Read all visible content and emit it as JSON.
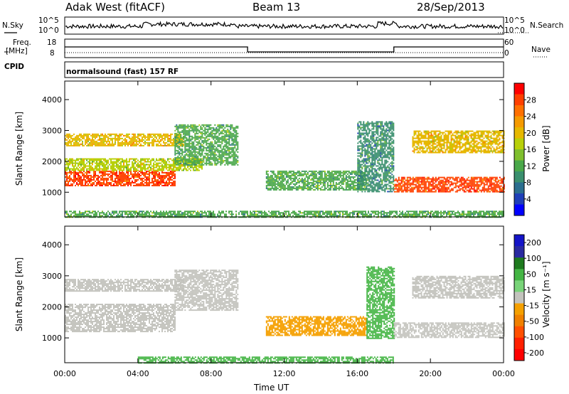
{
  "header": {
    "radar": "Adak West (fitACF)",
    "beam": "Beam 13",
    "date": "28/Sep/2013"
  },
  "status_panel": {
    "nsky_label": "N.Sky",
    "nsky_ticks": [
      "10^5",
      "10^0"
    ],
    "nsearch_label": "N.Search",
    "nsearch_ticks": [
      "10^5",
      "10^0"
    ],
    "freq_label_1": "Freq.",
    "freq_label_2": "[MHz]",
    "freq_ticks": [
      "18",
      "8"
    ],
    "nave_label": "Nave",
    "nave_ticks": [
      "60",
      "0"
    ],
    "cpid_label": "CPID",
    "cpid_value": "normalsound (fast) 157 RF"
  },
  "colors": {
    "power": [
      "#0000ff",
      "#1f3fb8",
      "#2b6e8f",
      "#3a8f6e",
      "#4aa84a",
      "#7fbf2e",
      "#b8d00a",
      "#e6b800",
      "#f59a00",
      "#ff7000",
      "#ff4000",
      "#ff0000"
    ],
    "velocity": [
      "#1414c8",
      "#2a2aa0",
      "#1e7a1e",
      "#44b544",
      "#79d479",
      "#c3c3bd",
      "#f5a000",
      "#f08000",
      "#ff5000",
      "#ff2000",
      "#ff0000"
    ],
    "ground_scatter": "#c3c3bd"
  },
  "chart_data": [
    {
      "type": "heatmap",
      "name": "power",
      "xlabel": "Time UT",
      "ylabel": "Slant Range [km]",
      "x_ticks": [
        "00:00",
        "04:00",
        "08:00",
        "12:00",
        "16:00",
        "20:00",
        "00:00"
      ],
      "y_ticks": [
        "1000",
        "2000",
        "3000",
        "4000"
      ],
      "ylim": [
        200,
        4600
      ],
      "colorbar_label": "Power [dB]",
      "colorbar_ticks": [
        "4",
        "8",
        "12",
        "16",
        "20",
        "24",
        "28"
      ],
      "bands": [
        {
          "t0": 0.0,
          "t1": 6.0,
          "r0": 1200,
          "r1": 1700,
          "level": 28
        },
        {
          "t0": 0.0,
          "t1": 7.5,
          "r0": 1700,
          "r1": 2100,
          "level": 16
        },
        {
          "t0": 0.0,
          "t1": 6.5,
          "r0": 2500,
          "r1": 2900,
          "level": 20
        },
        {
          "t0": 6.0,
          "t1": 9.5,
          "r0": 1900,
          "r1": 3200,
          "level": 12
        },
        {
          "t0": 11.0,
          "t1": 16.5,
          "r0": 1100,
          "r1": 1700,
          "level": 12
        },
        {
          "t0": 16.0,
          "t1": 18.0,
          "r0": 1000,
          "r1": 3300,
          "level": 8
        },
        {
          "t0": 18.0,
          "t1": 24.0,
          "r0": 1000,
          "r1": 1500,
          "level": 28
        },
        {
          "t0": 19.0,
          "t1": 24.0,
          "r0": 2300,
          "r1": 3000,
          "level": 20
        },
        {
          "t0": 0.0,
          "t1": 24.0,
          "r0": 200,
          "r1": 400,
          "level": 12
        }
      ]
    },
    {
      "type": "heatmap",
      "name": "velocity",
      "xlabel": "Time UT",
      "ylabel": "Slant Range [km]",
      "x_ticks": [
        "00:00",
        "04:00",
        "08:00",
        "12:00",
        "16:00",
        "20:00",
        "00:00"
      ],
      "y_ticks": [
        "1000",
        "2000",
        "3000",
        "4000"
      ],
      "ylim": [
        200,
        4600
      ],
      "colorbar_label": "Velocity [m s⁻¹]",
      "colorbar_ticks": [
        "200",
        "100",
        "50",
        "15",
        "-15",
        "-50",
        "-100",
        "-200"
      ],
      "bands": [
        {
          "t0": 0.0,
          "t1": 6.5,
          "r0": 2500,
          "r1": 2900,
          "level": 0
        },
        {
          "t0": 0.0,
          "t1": 6.0,
          "r0": 1200,
          "r1": 2100,
          "level": 0
        },
        {
          "t0": 6.0,
          "t1": 9.5,
          "r0": 1900,
          "r1": 3200,
          "level": 0
        },
        {
          "t0": 11.0,
          "t1": 16.5,
          "r0": 1100,
          "r1": 1700,
          "level": -50
        },
        {
          "t0": 16.5,
          "t1": 18.0,
          "r0": 1000,
          "r1": 3300,
          "level": 50
        },
        {
          "t0": 18.0,
          "t1": 24.0,
          "r0": 1000,
          "r1": 1500,
          "level": 0
        },
        {
          "t0": 19.0,
          "t1": 24.0,
          "r0": 2300,
          "r1": 3000,
          "level": 0
        },
        {
          "t0": 4.0,
          "t1": 18.0,
          "r0": 200,
          "r1": 400,
          "level": 50
        }
      ]
    }
  ]
}
